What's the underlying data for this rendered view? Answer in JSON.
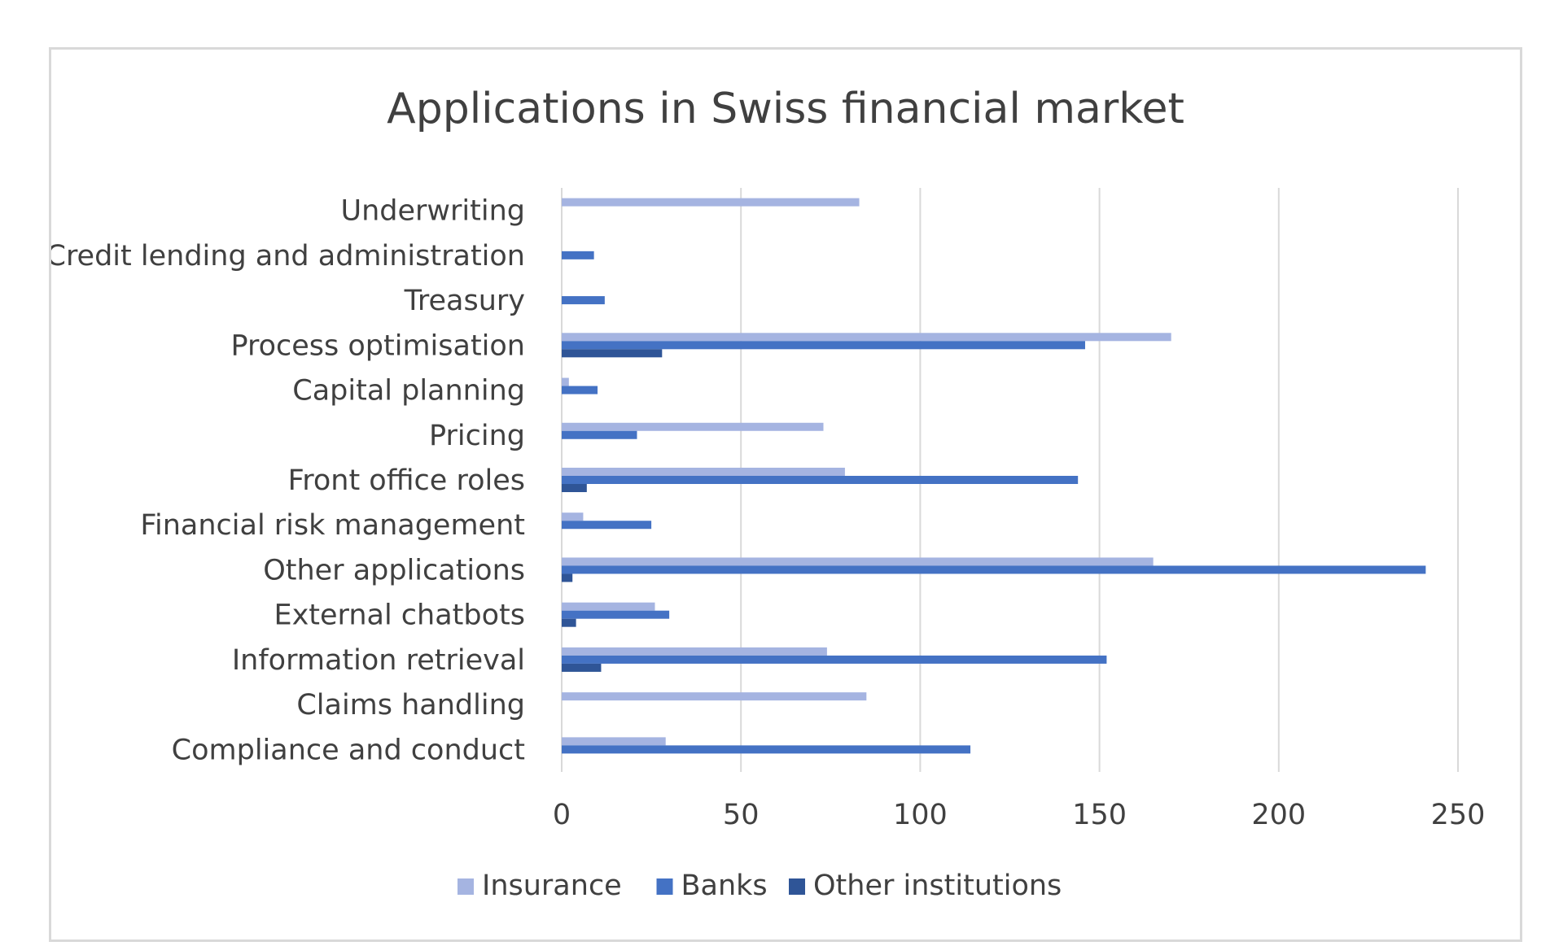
{
  "chart_data": {
    "type": "bar",
    "orientation": "horizontal",
    "title": "Applications in Swiss financial market",
    "xlabel": "",
    "ylabel": "",
    "xlim": [
      0,
      250
    ],
    "xticks": [
      0,
      50,
      100,
      150,
      200,
      250
    ],
    "grid": true,
    "legend_position": "bottom",
    "categories": [
      "Underwriting",
      "Credit lending and administration",
      "Treasury",
      "Process optimisation",
      "Capital planning",
      "Pricing",
      "Front office roles",
      "Financial risk management",
      "Other applications",
      "External chatbots",
      "Information retrieval",
      "Claims handling",
      "Compliance and conduct"
    ],
    "series": [
      {
        "name": "Insurance",
        "color": "#a5b4e1",
        "values": [
          83,
          0,
          0,
          170,
          2,
          73,
          79,
          6,
          165,
          26,
          74,
          85,
          29
        ]
      },
      {
        "name": "Banks",
        "color": "#4472c4",
        "values": [
          0,
          9,
          12,
          146,
          10,
          21,
          144,
          25,
          241,
          30,
          152,
          0,
          114
        ]
      },
      {
        "name": "Other institutions",
        "color": "#2f5597",
        "values": [
          0,
          0,
          0,
          28,
          0,
          0,
          7,
          0,
          3,
          4,
          11,
          0,
          0
        ]
      }
    ]
  }
}
